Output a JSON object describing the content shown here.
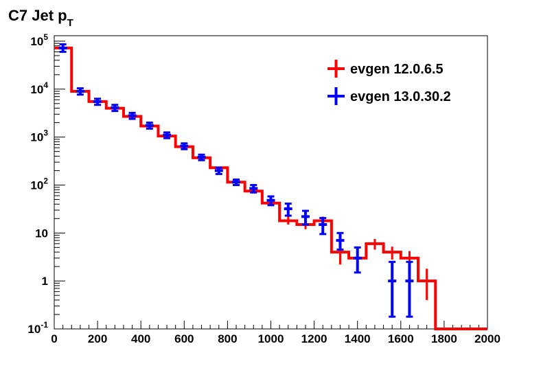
{
  "chart_data": {
    "type": "line",
    "title": "C7 Jet p",
    "title_subscript": "T",
    "x_scale": "linear",
    "y_scale": "log",
    "xlim": [
      0,
      2000
    ],
    "ylim": [
      0.1,
      130000
    ],
    "grid": false,
    "legend_position": "top-right",
    "x_ticks": [
      {
        "value": 0,
        "label": "0"
      },
      {
        "value": 200,
        "label": "200"
      },
      {
        "value": 400,
        "label": "400"
      },
      {
        "value": 600,
        "label": "600"
      },
      {
        "value": 800,
        "label": "800"
      },
      {
        "value": 1000,
        "label": "1000"
      },
      {
        "value": 1200,
        "label": "1200"
      },
      {
        "value": 1400,
        "label": "1400"
      },
      {
        "value": 1600,
        "label": "1600"
      },
      {
        "value": 1800,
        "label": "1800"
      },
      {
        "value": 2000,
        "label": "2000"
      }
    ],
    "y_ticks": [
      {
        "value": 0.1,
        "base": "10",
        "exp": "-1",
        "label": ""
      },
      {
        "value": 1,
        "base": "",
        "exp": "",
        "label": "1"
      },
      {
        "value": 10,
        "base": "",
        "exp": "",
        "label": "10"
      },
      {
        "value": 100,
        "base": "10",
        "exp": "2",
        "label": ""
      },
      {
        "value": 1000,
        "base": "10",
        "exp": "3",
        "label": ""
      },
      {
        "value": 10000,
        "base": "10",
        "exp": "4",
        "label": ""
      },
      {
        "value": 100000,
        "base": "10",
        "exp": "5",
        "label": ""
      }
    ],
    "bin_edges": [
      0,
      80,
      160,
      240,
      320,
      400,
      480,
      560,
      640,
      720,
      800,
      880,
      960,
      1040,
      1120,
      1200,
      1280,
      1360,
      1440,
      1520,
      1600,
      1680,
      1760,
      1840,
      1920,
      2000
    ],
    "series": [
      {
        "name": "evgen 12.0.6.5",
        "color": "#ff0000",
        "style": "histogram",
        "values": [
          72000,
          9000,
          5500,
          4000,
          2700,
          1700,
          1050,
          630,
          370,
          230,
          115,
          75,
          42,
          18,
          15,
          18,
          4,
          3,
          6,
          4,
          3,
          1,
          0,
          0,
          0
        ],
        "errors": [
          [
            72000,
            72000
          ],
          [
            9000,
            9000
          ],
          [
            5500,
            5500
          ],
          [
            4000,
            4000
          ],
          [
            2700,
            2700
          ],
          [
            1700,
            1700
          ],
          [
            1050,
            1050
          ],
          [
            630,
            630
          ],
          [
            370,
            370
          ],
          [
            230,
            230
          ],
          [
            110,
            120
          ],
          [
            70,
            80
          ],
          [
            38,
            46
          ],
          [
            15,
            22
          ],
          [
            12,
            18
          ],
          [
            14,
            22
          ],
          [
            2.2,
            5.8
          ],
          [
            1.8,
            4.2
          ],
          [
            4.5,
            7.5
          ],
          [
            2.8,
            5.2
          ],
          [
            1.8,
            4.2
          ],
          [
            0.4,
            1.8
          ],
          [
            0,
            0
          ],
          [
            0,
            0
          ],
          [
            0,
            0
          ]
        ]
      },
      {
        "name": "evgen 13.0.30.2",
        "color": "#0000ff",
        "style": "points",
        "values": [
          72000,
          9000,
          5500,
          4100,
          2800,
          1750,
          1100,
          650,
          380,
          200,
          115,
          85,
          48,
          32,
          22,
          15,
          7,
          3,
          0,
          1,
          1,
          0,
          0,
          0,
          0
        ],
        "errors": [
          [
            60000,
            86000
          ],
          [
            7700,
            10400
          ],
          [
            4700,
            6300
          ],
          [
            3500,
            4700
          ],
          [
            2400,
            3200
          ],
          [
            1500,
            2000
          ],
          [
            950,
            1250
          ],
          [
            560,
            740
          ],
          [
            330,
            430
          ],
          [
            170,
            230
          ],
          [
            100,
            130
          ],
          [
            70,
            100
          ],
          [
            38,
            58
          ],
          [
            23,
            41
          ],
          [
            15,
            29
          ],
          [
            9.5,
            20.5
          ],
          [
            4.5,
            10
          ],
          [
            1.5,
            5
          ],
          [
            0,
            0
          ],
          [
            0.18,
            2.5
          ],
          [
            0.18,
            2.5
          ],
          [
            0,
            0
          ],
          [
            0,
            0
          ],
          [
            0,
            0
          ],
          [
            0,
            0
          ]
        ]
      }
    ]
  }
}
